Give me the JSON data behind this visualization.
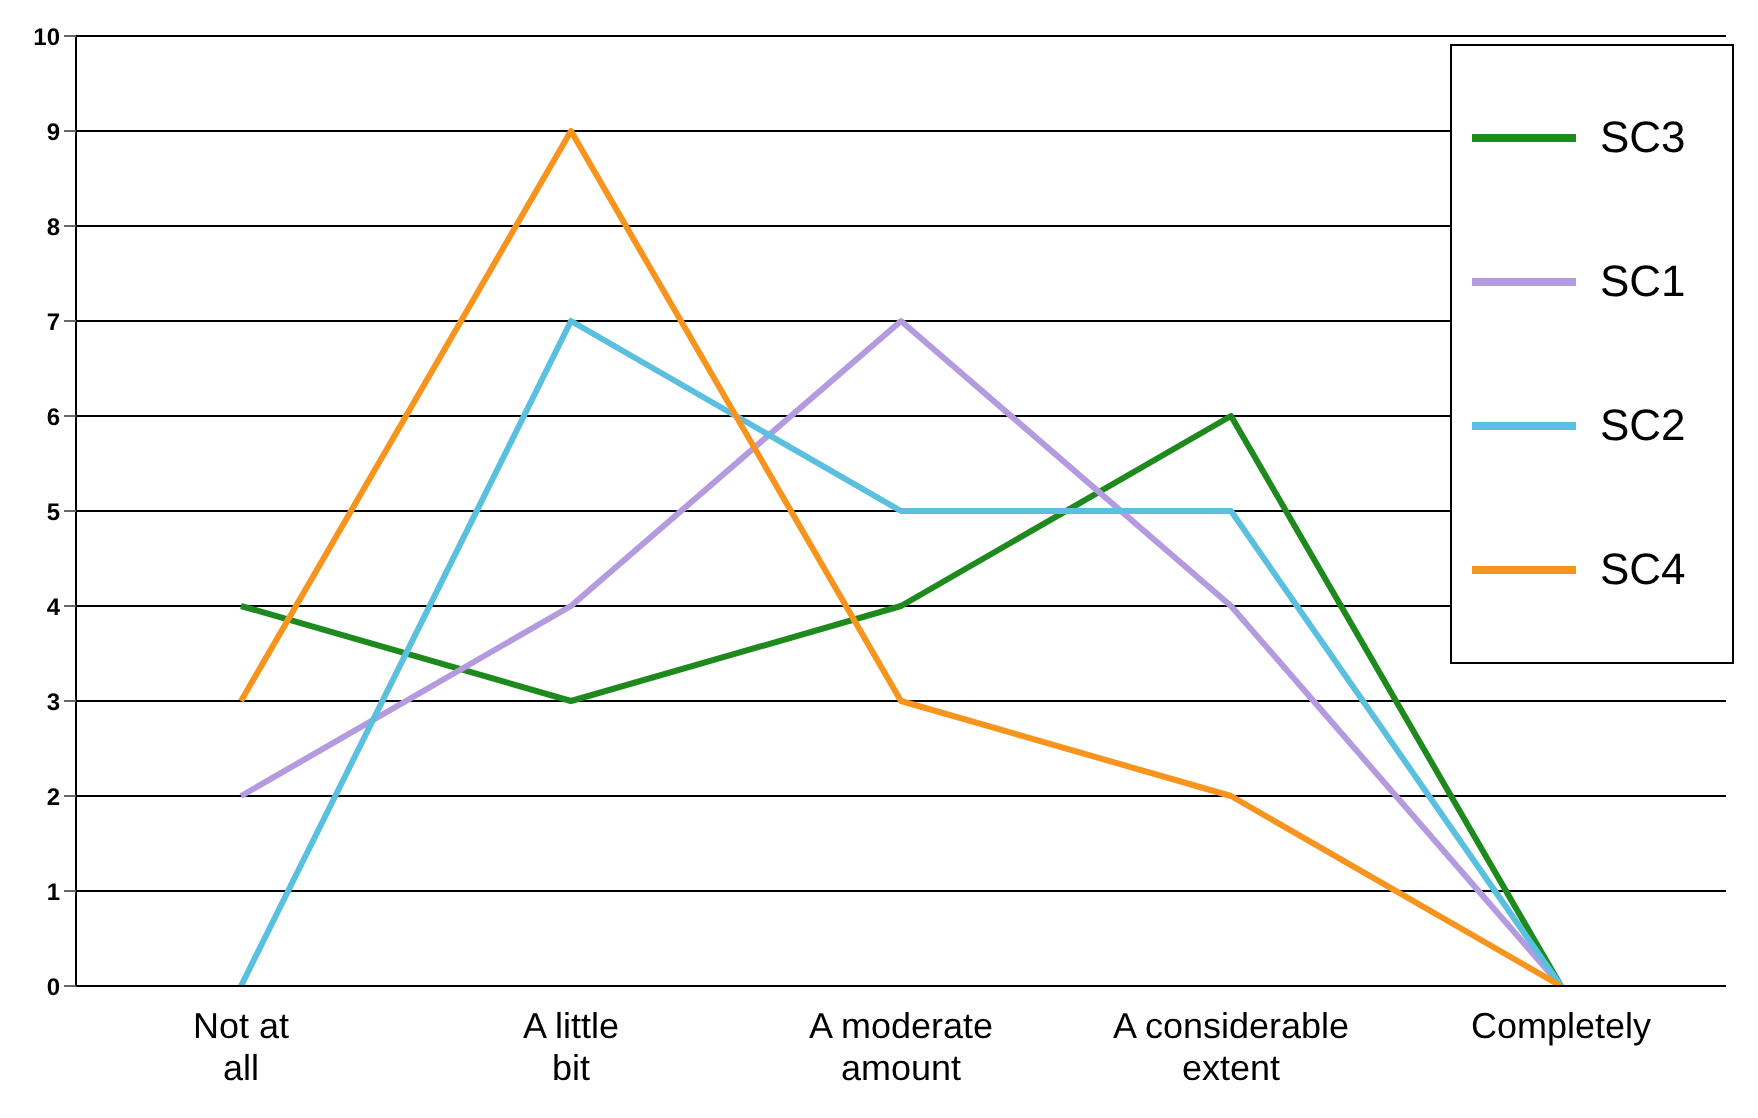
{
  "chart_data": {
    "type": "line",
    "categories": [
      "Not at all",
      "A little bit",
      "A moderate amount",
      "A considerable extent",
      "Completely"
    ],
    "series": [
      {
        "name": "SC3",
        "color": "#1e8a1e",
        "values": [
          4,
          3,
          4,
          6,
          0
        ]
      },
      {
        "name": "SC1",
        "color": "#b49be0",
        "values": [
          2,
          4,
          7,
          4,
          0
        ]
      },
      {
        "name": "SC2",
        "color": "#5bc0e0",
        "values": [
          0,
          7,
          5,
          5,
          0
        ]
      },
      {
        "name": "SC4",
        "color": "#f7941d",
        "values": [
          3,
          9,
          3,
          2,
          0
        ]
      }
    ],
    "ylim": [
      0,
      10
    ],
    "yticks": [
      0,
      1,
      2,
      3,
      4,
      5,
      6,
      7,
      8,
      9,
      10
    ],
    "grid": "y",
    "legend": "top right",
    "marker": "none",
    "line_style": "solid"
  }
}
